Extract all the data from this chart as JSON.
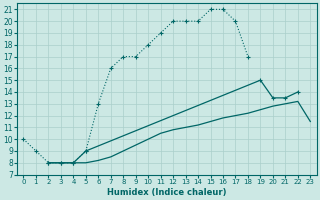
{
  "xlabel": "Humidex (Indice chaleur)",
  "background_color": "#cce8e4",
  "line_color": "#006666",
  "grid_color": "#aacfcb",
  "xlim": [
    -0.5,
    23.5
  ],
  "ylim": [
    7,
    21.5
  ],
  "xticks": [
    0,
    1,
    2,
    3,
    4,
    5,
    6,
    7,
    8,
    9,
    10,
    11,
    12,
    13,
    14,
    15,
    16,
    17,
    18,
    19,
    20,
    21,
    22,
    23
  ],
  "yticks": [
    7,
    8,
    9,
    10,
    11,
    12,
    13,
    14,
    15,
    16,
    17,
    18,
    19,
    20,
    21
  ],
  "curve1_x": [
    0,
    1,
    2,
    3,
    4,
    5,
    6,
    7,
    8,
    9,
    10,
    11,
    12,
    13,
    14,
    15,
    16,
    17,
    18
  ],
  "curve1_y": [
    10,
    9,
    8,
    8,
    8,
    9,
    13,
    16,
    17,
    17,
    18,
    19,
    20,
    20,
    20,
    21,
    21,
    20,
    17
  ],
  "curve2_x": [
    2,
    3,
    4,
    5,
    19,
    20,
    21,
    22
  ],
  "curve2_y": [
    8,
    8,
    8,
    9,
    15,
    13.5,
    13.5,
    14
  ],
  "curve3_x": [
    2,
    3,
    4,
    5,
    6,
    7,
    8,
    9,
    10,
    11,
    12,
    13,
    14,
    15,
    16,
    17,
    18,
    19,
    20,
    21,
    22,
    23
  ],
  "curve3_y": [
    8,
    8,
    8,
    8,
    8.2,
    8.5,
    9,
    9.5,
    10,
    10.5,
    10.8,
    11,
    11.2,
    11.5,
    11.8,
    12,
    12.2,
    12.5,
    12.8,
    13,
    13.2,
    11.5
  ],
  "c1_color": "#006666",
  "c2_color": "#006666",
  "c3_color": "#006666"
}
